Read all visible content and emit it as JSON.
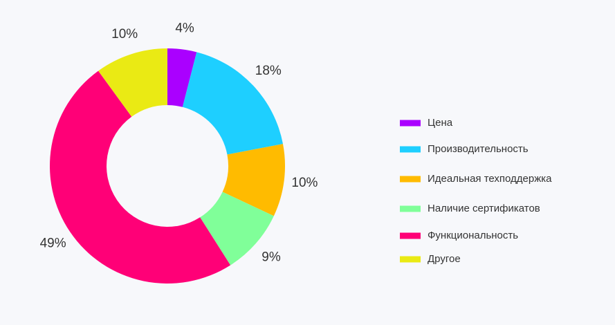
{
  "chart_data": {
    "type": "donut",
    "categories": [
      "Цена",
      "Производительность",
      "Идеальная техподдержка",
      "Наличие сертификатов",
      "Функциональность",
      "Другое"
    ],
    "values": [
      4,
      18,
      10,
      9,
      49,
      10
    ],
    "value_labels": [
      "4%",
      "18%",
      "10%",
      "9%",
      "49%",
      "10%"
    ],
    "colors": [
      "#aa00ff",
      "#1ecfff",
      "#ffbb00",
      "#80ff99",
      "#ff0077",
      "#eaea14"
    ],
    "legend": "right"
  }
}
